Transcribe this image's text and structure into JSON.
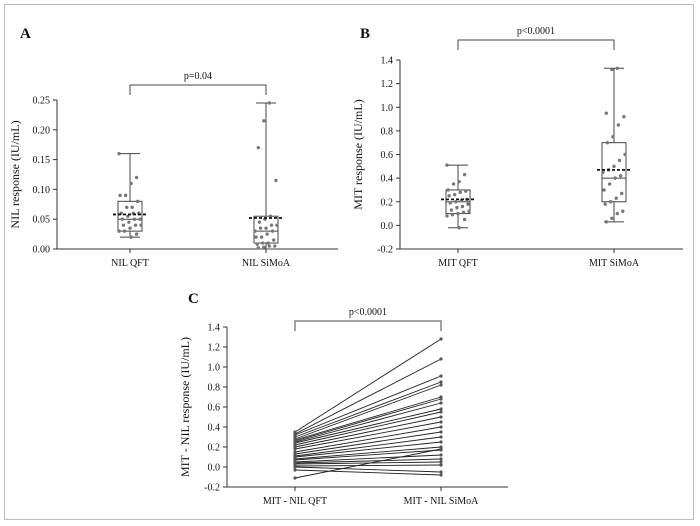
{
  "chart_data": [
    {
      "panel": "A",
      "type": "box",
      "ylabel": "NIL response (IU/mL)",
      "ylim": [
        0,
        0.25
      ],
      "yticks": [
        "0.00",
        "0.05",
        "0.10",
        "0.15",
        "0.20",
        "0.25"
      ],
      "yticks_val": [
        0,
        0.05,
        0.1,
        0.15,
        0.2,
        0.25
      ],
      "categories": [
        "NIL QFT",
        "NIL SiMoA"
      ],
      "boxes": [
        {
          "min": 0.02,
          "q1": 0.03,
          "median": 0.05,
          "q3": 0.08,
          "max": 0.16,
          "mean": 0.058,
          "points": [
            0.16,
            0.12,
            0.11,
            0.09,
            0.09,
            0.08,
            0.07,
            0.07,
            0.06,
            0.06,
            0.06,
            0.055,
            0.05,
            0.05,
            0.05,
            0.045,
            0.04,
            0.04,
            0.04,
            0.035,
            0.03,
            0.03,
            0.025,
            0.02
          ]
        },
        {
          "min": 0.0,
          "q1": 0.01,
          "median": 0.03,
          "q3": 0.055,
          "max": 0.245,
          "mean": 0.052,
          "points": [
            0.245,
            0.215,
            0.17,
            0.115,
            0.055,
            0.05,
            0.045,
            0.04,
            0.04,
            0.035,
            0.035,
            0.03,
            0.03,
            0.025,
            0.02,
            0.02,
            0.015,
            0.01,
            0.01,
            0.008,
            0.005,
            0.005,
            0.003,
            0.002
          ]
        }
      ],
      "pvalue": "p=0.04"
    },
    {
      "panel": "B",
      "type": "box",
      "ylabel": "MIT response (IU/mL)",
      "ylim": [
        -0.2,
        1.4
      ],
      "yticks": [
        "-0.2",
        "0.0",
        "0.2",
        "0.4",
        "0.6",
        "0.8",
        "1.0",
        "1.2",
        "1.4"
      ],
      "yticks_val": [
        -0.2,
        0,
        0.2,
        0.4,
        0.6,
        0.8,
        1.0,
        1.2,
        1.4
      ],
      "categories": [
        "MIT QFT",
        "MIT SiMoA"
      ],
      "boxes": [
        {
          "min": -0.02,
          "q1": 0.1,
          "median": 0.2,
          "q3": 0.3,
          "max": 0.51,
          "mean": 0.22,
          "points": [
            0.51,
            0.43,
            0.37,
            0.35,
            0.3,
            0.29,
            0.28,
            0.26,
            0.25,
            0.22,
            0.21,
            0.2,
            0.19,
            0.18,
            0.16,
            0.15,
            0.13,
            0.12,
            0.11,
            0.1,
            0.09,
            0.08,
            0.05,
            -0.02
          ]
        },
        {
          "min": 0.03,
          "q1": 0.2,
          "median": 0.4,
          "q3": 0.7,
          "max": 1.33,
          "mean": 0.47,
          "points": [
            1.33,
            1.32,
            0.95,
            0.92,
            0.85,
            0.75,
            0.7,
            0.6,
            0.55,
            0.5,
            0.47,
            0.45,
            0.42,
            0.4,
            0.35,
            0.3,
            0.27,
            0.23,
            0.2,
            0.18,
            0.12,
            0.1,
            0.06,
            0.03
          ]
        }
      ],
      "pvalue": "p<0.0001"
    },
    {
      "panel": "C",
      "type": "line",
      "ylabel": "MIT - NIL response (IU/mL)",
      "ylim": [
        -0.2,
        1.4
      ],
      "yticks": [
        "-0.2",
        "0.0",
        "0.2",
        "0.4",
        "0.6",
        "0.8",
        "1.0",
        "1.2",
        "1.4"
      ],
      "yticks_val": [
        -0.2,
        0,
        0.2,
        0.4,
        0.6,
        0.8,
        1.0,
        1.2,
        1.4
      ],
      "categories": [
        "MIT - NIL QFT",
        "MIT - NIL SiMoA"
      ],
      "pairs": [
        [
          0.35,
          1.28
        ],
        [
          0.33,
          1.08
        ],
        [
          0.32,
          0.91
        ],
        [
          0.3,
          0.85
        ],
        [
          0.28,
          0.82
        ],
        [
          0.27,
          0.7
        ],
        [
          0.26,
          0.68
        ],
        [
          0.25,
          0.64
        ],
        [
          0.24,
          0.58
        ],
        [
          0.22,
          0.55
        ],
        [
          0.2,
          0.5
        ],
        [
          0.18,
          0.45
        ],
        [
          0.15,
          0.4
        ],
        [
          0.13,
          0.35
        ],
        [
          0.11,
          0.3
        ],
        [
          0.1,
          0.25
        ],
        [
          0.08,
          0.2
        ],
        [
          0.07,
          0.17
        ],
        [
          0.05,
          0.12
        ],
        [
          0.04,
          0.08
        ],
        [
          0.03,
          0.05
        ],
        [
          0.01,
          0.02
        ],
        [
          0.0,
          -0.05
        ],
        [
          -0.03,
          -0.08
        ],
        [
          -0.11,
          0.18
        ]
      ],
      "pvalue": "p<0.0001"
    }
  ]
}
